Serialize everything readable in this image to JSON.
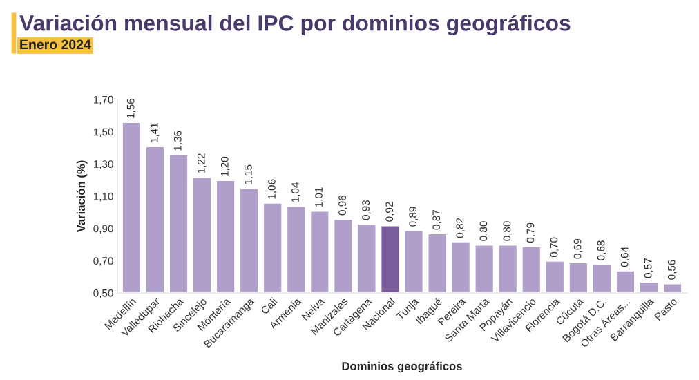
{
  "chart_data": {
    "type": "bar",
    "title": "Variación mensual del IPC por dominios geográficos",
    "subtitle": "Enero 2024",
    "xlabel": "Dominios geográficos",
    "ylabel": "Variación (%)",
    "categories": [
      "Medellín",
      "Valledupar",
      "Riohacha",
      "Sincelejo",
      "Montería",
      "Bucaramanga",
      "Cali",
      "Armenia",
      "Neiva",
      "Manizales",
      "Cartagena",
      "Nacional",
      "Tunja",
      "Ibagué",
      "Pereira",
      "Santa Marta",
      "Popayán",
      "Villavicencio",
      "Florencia",
      "Cúcuta",
      "Bogotá D.C.",
      "Otras Áreas...",
      "Barranquilla",
      "Pasto"
    ],
    "values": [
      1.56,
      1.41,
      1.36,
      1.22,
      1.2,
      1.15,
      1.06,
      1.04,
      1.01,
      0.96,
      0.93,
      0.92,
      0.89,
      0.87,
      0.82,
      0.8,
      0.8,
      0.79,
      0.7,
      0.69,
      0.68,
      0.64,
      0.57,
      0.56
    ],
    "value_labels": [
      "1,56",
      "1,41",
      "1,36",
      "1,22",
      "1,20",
      "1,15",
      "1,06",
      "1,04",
      "1,01",
      "0,96",
      "0,93",
      "0,92",
      "0,89",
      "0,87",
      "0,82",
      "0,80",
      "0,80",
      "0,79",
      "0,70",
      "0,69",
      "0,68",
      "0,64",
      "0,57",
      "0,56"
    ],
    "colors": [
      "#b09fca",
      "#b09fca",
      "#b09fca",
      "#b09fca",
      "#b09fca",
      "#b09fca",
      "#b09fca",
      "#b09fca",
      "#b09fca",
      "#b09fca",
      "#b09fca",
      "#7b5c9b",
      "#b09fca",
      "#b09fca",
      "#b09fca",
      "#b09fca",
      "#b09fca",
      "#b09fca",
      "#b09fca",
      "#b09fca",
      "#b09fca",
      "#b09fca",
      "#b09fca",
      "#b09fca"
    ],
    "ylim": [
      0.5,
      1.7
    ],
    "yticks": [
      {
        "value": 0.5,
        "label": "0,50"
      },
      {
        "value": 0.7,
        "label": "0,70"
      },
      {
        "value": 0.9,
        "label": "0,90"
      },
      {
        "value": 1.1,
        "label": "1,10"
      },
      {
        "value": 1.3,
        "label": "1,30"
      },
      {
        "value": 1.5,
        "label": "1,50"
      },
      {
        "value": 1.7,
        "label": "1,70"
      }
    ],
    "grid": false,
    "legend": false
  }
}
